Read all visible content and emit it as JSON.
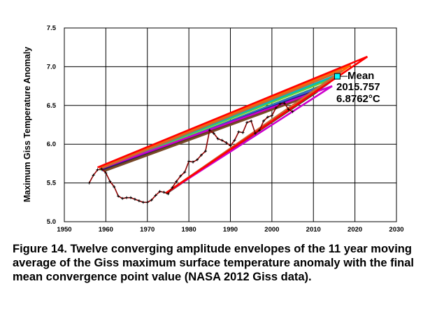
{
  "chart_data": {
    "type": "line",
    "title": "",
    "ylabel": "Maximum Giss Temperature Anomaly",
    "xlabel": "",
    "xlim": [
      1950,
      2030
    ],
    "ylim": [
      5.0,
      7.5
    ],
    "x_ticks": [
      "1950",
      "1960",
      "1970",
      "1980",
      "1990",
      "2000",
      "2010",
      "2020",
      "2030"
    ],
    "y_ticks": [
      "5.0",
      "5.5",
      "6.0",
      "6.5",
      "7.0",
      "7.5"
    ],
    "grid": true,
    "series": [
      {
        "type": "moving_average",
        "color": "#8b0000",
        "x": [
          1956,
          1957,
          1958,
          1959,
          1960,
          1961,
          1962,
          1963,
          1964,
          1965,
          1966,
          1967,
          1968,
          1969,
          1970,
          1971,
          1972,
          1973,
          1974,
          1975,
          1976,
          1977,
          1978,
          1979,
          1980,
          1981,
          1982,
          1983,
          1984,
          1985,
          1986,
          1987,
          1988,
          1989,
          1990,
          1991,
          1992,
          1993,
          1994,
          1995,
          1996,
          1997,
          1998,
          1999,
          2000,
          2001,
          2002,
          2003,
          2004,
          2005
        ],
        "y": [
          5.5,
          5.6,
          5.67,
          5.68,
          5.63,
          5.52,
          5.45,
          5.33,
          5.3,
          5.31,
          5.31,
          5.29,
          5.27,
          5.25,
          5.25,
          5.28,
          5.34,
          5.39,
          5.38,
          5.36,
          5.44,
          5.52,
          5.59,
          5.64,
          5.78,
          5.77,
          5.8,
          5.86,
          5.91,
          6.18,
          6.14,
          6.07,
          6.05,
          6.02,
          5.98,
          6.05,
          6.16,
          6.15,
          6.28,
          6.3,
          6.14,
          6.18,
          6.3,
          6.35,
          6.37,
          6.47,
          6.52,
          6.53,
          6.45,
          6.42
        ]
      },
      {
        "type": "envelope",
        "color": "#00cc00",
        "x": [
          1958.5,
          2015.757,
          1974.5
        ],
        "y": [
          5.69,
          6.8762,
          5.37
        ]
      },
      {
        "type": "envelope",
        "color": "#66cc33",
        "x": [
          1958.5,
          2015.2,
          1974.5
        ],
        "y": [
          5.67,
          6.86,
          5.37
        ]
      },
      {
        "type": "envelope",
        "color": "#33aa55",
        "x": [
          1959.0,
          2014.0,
          1974.5
        ],
        "y": [
          5.66,
          6.8,
          5.36
        ]
      },
      {
        "type": "envelope",
        "color": "#00bbbb",
        "x": [
          1958.5,
          2016.0,
          1975.0
        ],
        "y": [
          5.68,
          6.9,
          5.38
        ]
      },
      {
        "type": "envelope",
        "color": "#3366cc",
        "x": [
          1959.0,
          2013.5,
          1975.0
        ],
        "y": [
          5.66,
          6.78,
          5.38
        ]
      },
      {
        "type": "envelope",
        "color": "#1a1a80",
        "x": [
          1959.0,
          2012.0,
          1974.5
        ],
        "y": [
          5.67,
          6.72,
          5.37
        ]
      },
      {
        "type": "envelope",
        "color": "#5a3a1a",
        "x": [
          1959.5,
          2011.0,
          1974.5
        ],
        "y": [
          5.66,
          6.68,
          5.37
        ]
      },
      {
        "type": "envelope",
        "color": "#7a4a2a",
        "x": [
          1959.5,
          2009.0,
          1975.0
        ],
        "y": [
          5.65,
          6.62,
          5.38
        ]
      },
      {
        "type": "envelope",
        "color": "#cc00cc",
        "x": [
          1958.5,
          2014.5,
          1974.5
        ],
        "y": [
          5.68,
          6.75,
          5.37
        ]
      },
      {
        "type": "envelope",
        "color": "#ff6600",
        "x": [
          1958.5,
          2019.0,
          1974.5
        ],
        "y": [
          5.69,
          7.02,
          5.37
        ]
      },
      {
        "type": "envelope",
        "color": "#cc6633",
        "x": [
          1958.5,
          2017.0,
          1974.5
        ],
        "y": [
          5.68,
          6.95,
          5.37
        ]
      },
      {
        "type": "envelope",
        "color": "#ff0000",
        "x": [
          1958.0,
          2023.0,
          1974.5
        ],
        "y": [
          5.7,
          7.13,
          5.37
        ]
      }
    ],
    "mean_point": {
      "x": 2015.757,
      "y": 6.8762,
      "color": "#00ffff"
    },
    "annotation": {
      "line1": "Mean",
      "line2": "2015.757",
      "line3": "6.8762",
      "unit": "°C"
    }
  },
  "caption": "Figure 14.  Twelve converging amplitude envelopes of the 11 year moving average of the Giss maximum surface temperature anomaly with the final mean convergence point value (NASA 2012 Giss data)."
}
